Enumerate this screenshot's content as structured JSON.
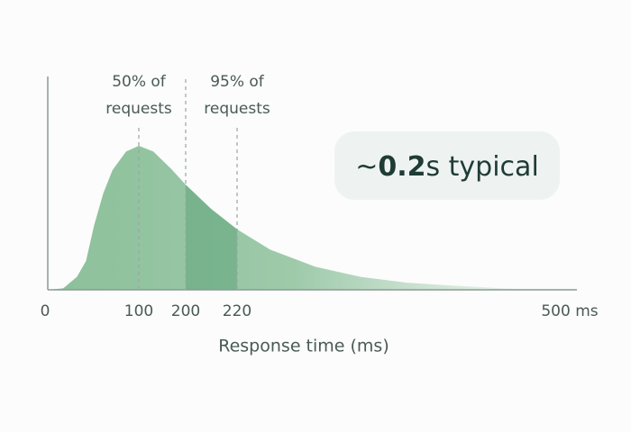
{
  "chart_data": {
    "type": "area",
    "x": [
      0,
      17,
      32,
      42,
      51,
      61,
      71,
      86,
      100,
      131,
      169,
      200,
      210,
      220,
      249,
      289,
      329,
      369,
      408,
      456,
      488
    ],
    "values": [
      0,
      1,
      9,
      20,
      45,
      67,
      83,
      96,
      100,
      96,
      84,
      73,
      56,
      42,
      28,
      16,
      9,
      5,
      3,
      1,
      0
    ],
    "color": "#7fb98f",
    "highlight_color": "#5fa47a",
    "xlim": [
      0,
      500
    ],
    "ylim": [
      0,
      100
    ],
    "xticks": [
      0,
      100,
      200,
      220,
      {
        "value": 500,
        "label": "500 ms"
      }
    ],
    "xlabel": "Response time (ms)",
    "annotations": [
      {
        "x": 100,
        "lines": [
          "50% of",
          "requests"
        ]
      },
      {
        "x": 220,
        "lines": [
          "95% of",
          "requests"
        ]
      }
    ],
    "badge": {
      "prefix": "~",
      "value": 0.2,
      "suffix": "s typical"
    }
  }
}
